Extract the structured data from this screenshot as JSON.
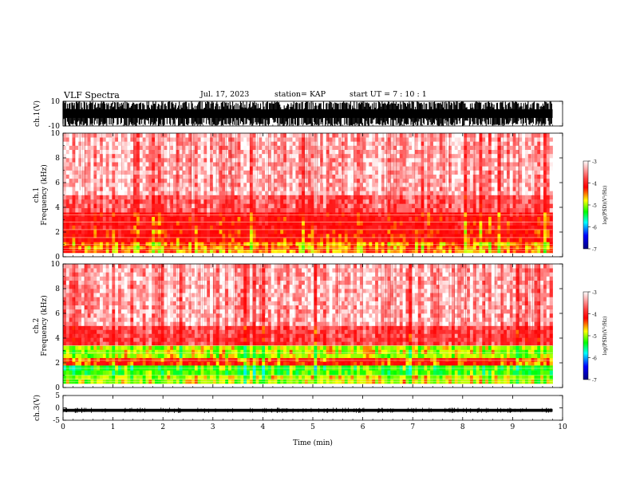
{
  "header": {
    "title": "VLF Spectra",
    "date": "Jul. 17, 2023",
    "station": "station= KAP",
    "start_ut": "start  UT =   7 : 10 : 1"
  },
  "chart_data": [
    {
      "type": "line",
      "name": "ch1-waveform",
      "ylabel": "ch.1(V)",
      "ylim": [
        -10,
        10
      ],
      "yticks": [
        "10",
        "-10"
      ],
      "description_visible": "dense black saturated waveform spanning full range",
      "x": [
        0,
        10
      ],
      "xlabel": ""
    },
    {
      "type": "heatmap",
      "name": "ch1-spectrogram",
      "ylabel": "ch.1\nFrequency (kHz)",
      "ylim": [
        0,
        10
      ],
      "yticks": [
        "0",
        "2",
        "4",
        "6",
        "8",
        "10"
      ],
      "xlim": [
        0,
        10
      ],
      "data_end_min": 9.8,
      "bands": [
        {
          "f_low": 0.3,
          "f_high": 1.2,
          "level": -4.3
        },
        {
          "f_low": 1.2,
          "f_high": 2.2,
          "level": -4.0
        },
        {
          "f_low": 2.2,
          "f_high": 3.6,
          "level": -3.9
        },
        {
          "f_low": 3.6,
          "f_high": 5.0,
          "level": -3.5
        },
        {
          "f_low": 5.0,
          "f_high": 10.0,
          "level": -3.2
        }
      ],
      "colorbar": {
        "label": "log(PSD)(V²/Hz)",
        "range": [
          -7,
          -3
        ],
        "ticks": [
          "-3",
          "-4",
          "-5",
          "-6",
          "-7"
        ],
        "colors": [
          "#ffffff",
          "#ff0000",
          "#ffff00",
          "#00ff00",
          "#00ffff",
          "#0000ff",
          "#000080"
        ]
      }
    },
    {
      "type": "heatmap",
      "name": "ch2-spectrogram",
      "ylabel": "ch.2\nFrequency (kHz)",
      "ylim": [
        0,
        10
      ],
      "yticks": [
        "0",
        "2",
        "4",
        "6",
        "8",
        "10"
      ],
      "xlim": [
        0,
        10
      ],
      "data_end_min": 9.8,
      "bands": [
        {
          "f_low": 0.3,
          "f_high": 1.0,
          "level": -4.6
        },
        {
          "f_low": 1.0,
          "f_high": 1.8,
          "level": -4.9
        },
        {
          "f_low": 1.8,
          "f_high": 2.4,
          "level": -4.1
        },
        {
          "f_low": 2.4,
          "f_high": 3.4,
          "level": -4.6
        },
        {
          "f_low": 3.4,
          "f_high": 5.0,
          "level": -3.6
        },
        {
          "f_low": 5.0,
          "f_high": 10.0,
          "level": -3.2
        }
      ],
      "colorbar": {
        "label": "log(PSD)(V²/Hz)",
        "range": [
          -7,
          -3
        ],
        "ticks": [
          "-3",
          "-4",
          "-5",
          "-6",
          "-7"
        ]
      }
    },
    {
      "type": "line",
      "name": "ch3-waveform",
      "ylabel": "ch.3(V)",
      "ylim": [
        -5,
        5
      ],
      "yticks": [
        "5",
        "0",
        "-5"
      ],
      "level_volts": -1.0,
      "xlim": [
        0,
        10
      ],
      "xticks": [
        "0",
        "1",
        "2",
        "3",
        "4",
        "5",
        "6",
        "7",
        "8",
        "9",
        "10"
      ],
      "xlabel": "Time (min)"
    }
  ]
}
